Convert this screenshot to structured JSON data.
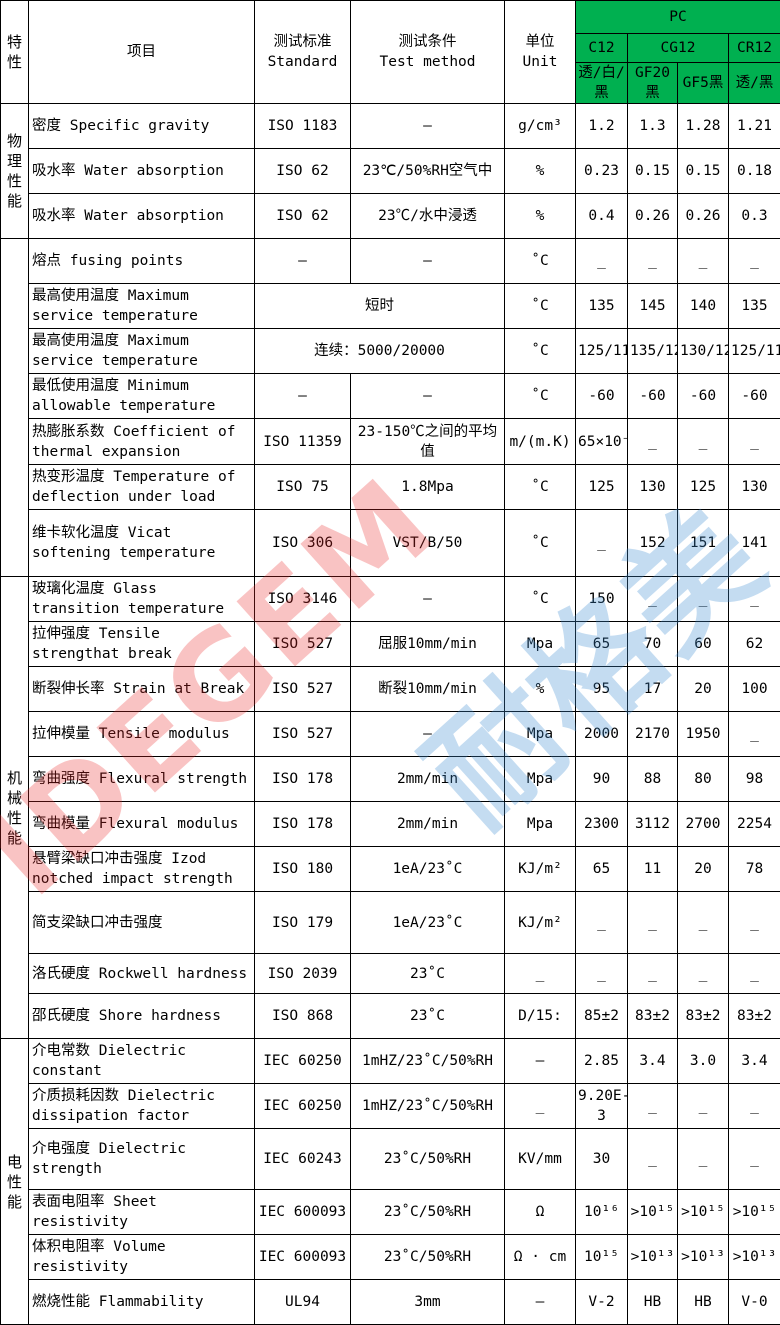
{
  "header": {
    "property": "特性",
    "item": "项目",
    "standard_cn": "测试标准",
    "standard_en": "Standard",
    "condition_cn": "测试条件",
    "condition_en": "Test method",
    "unit_cn": "单位",
    "unit_en": "Unit",
    "material": "PC",
    "grades": [
      "C12",
      "CG12",
      "CR12"
    ],
    "variants": [
      "透/白/黑",
      "GF20黑",
      "GF5黑",
      "透/黑"
    ]
  },
  "sections": [
    "物理性能",
    "",
    "机械性能",
    "电性能"
  ],
  "rows": [
    {
      "item": "密度  Specific gravity",
      "standard": "ISO 1183",
      "condition": "–",
      "unit": "g/cm³",
      "values": [
        "1.2",
        "1.3",
        "1.28",
        "1.21"
      ]
    },
    {
      "item": "吸水率  Water absorption",
      "standard": "ISO 62",
      "condition": "23℃/50%RH空气中",
      "unit": "%",
      "values": [
        "0.23",
        "0.15",
        "0.15",
        "0.18"
      ]
    },
    {
      "item": "吸水率  Water absorption",
      "standard": "ISO 62",
      "condition": "23℃/水中浸透",
      "unit": "%",
      "values": [
        "0.4",
        "0.26",
        "0.26",
        "0.3"
      ]
    },
    {
      "item": "熔点 fusing points",
      "standard": "–",
      "condition": "–",
      "unit": "˚C",
      "values": [
        "_",
        "_",
        "_",
        "_"
      ]
    },
    {
      "item": "最高使用温度 Maximum service temperature",
      "merged": "短时",
      "unit": "˚C",
      "values": [
        "135",
        "145",
        "140",
        "135"
      ]
    },
    {
      "item": "最高使用温度 Maximum service temperature",
      "merged": "连续：5000/20000",
      "unit": "˚C",
      "values": [
        "125/115",
        "135/125",
        "130/120",
        "125/115"
      ]
    },
    {
      "item": "最低使用温度 Minimum allowable temperature",
      "standard": "–",
      "condition": "–",
      "unit": "˚C",
      "values": [
        "-60",
        "-60",
        "-60",
        "-60"
      ]
    },
    {
      "item": "热膨胀系数 Coefficient of thermal expansion",
      "standard": "ISO 11359",
      "condition": "23-150℃之间的平均值",
      "unit": "m/(m.K)",
      "values": [
        "65×10⁻⁶",
        "_",
        "_",
        "_"
      ]
    },
    {
      "item": "热变形温度 Temperature of deflection under load",
      "standard": "ISO 75",
      "condition": "1.8Mpa",
      "unit": "˚C",
      "values": [
        "125",
        "130",
        "125",
        "130"
      ]
    },
    {
      "item": "维卡软化温度 Vicat softening temperature",
      "standard": "ISO 306",
      "condition": "VST/B/50",
      "unit": "˚C",
      "values": [
        "_",
        "152",
        "151",
        "141"
      ]
    },
    {
      "item": "玻璃化温度 Glass transition temperature",
      "standard": "ISO 3146",
      "condition": "–",
      "unit": "˚C",
      "values": [
        "150",
        "_",
        "_",
        "_"
      ]
    },
    {
      "item": "拉伸强度  Tensile strengthat break",
      "standard": "ISO 527",
      "condition": "屈服10mm/min",
      "unit": "Mpa",
      "values": [
        "65",
        "70",
        "60",
        "62"
      ]
    },
    {
      "item": "断裂伸长率  Strain at Break",
      "standard": "ISO 527",
      "condition": "断裂10mm/min",
      "unit": "%",
      "values": [
        "95",
        "17",
        "20",
        "100"
      ]
    },
    {
      "item": "拉伸模量  Tensile modulus",
      "standard": "ISO 527",
      "condition": "–",
      "unit": "Mpa",
      "values": [
        "2000",
        "2170",
        "1950",
        "_"
      ]
    },
    {
      "item": "弯曲强度  Flexural strength",
      "standard": "ISO 178",
      "condition": "2mm/min",
      "unit": "Mpa",
      "values": [
        "90",
        "88",
        "80",
        "98"
      ]
    },
    {
      "item": "弯曲模量  Flexural modulus",
      "standard": "ISO 178",
      "condition": "2mm/min",
      "unit": "Mpa",
      "values": [
        "2300",
        "3112",
        "2700",
        "2254"
      ]
    },
    {
      "item": "悬臂梁缺口冲击强度 Izod notched impact strength",
      "standard": "ISO 180",
      "condition": "1eA/23˚C",
      "unit": "KJ/m²",
      "values": [
        "65",
        "11",
        "20",
        "78"
      ]
    },
    {
      "item": "简支梁缺口冲击强度",
      "standard": "ISO 179",
      "condition": "1eA/23˚C",
      "unit": "KJ/m²",
      "values": [
        "_",
        "_",
        "_",
        "_"
      ]
    },
    {
      "item": "洛氏硬度  Rockwell hardness",
      "standard": "ISO 2039",
      "condition": "23˚C",
      "unit": "_",
      "values": [
        "_",
        "_",
        "_",
        "_"
      ]
    },
    {
      "item": "邵氏硬度  Shore hardness",
      "standard": "ISO 868",
      "condition": "23˚C",
      "unit": "D/15:",
      "values": [
        "85±2",
        "83±2",
        "83±2",
        "83±2"
      ]
    },
    {
      "item": "介电常数  Dielectric constant",
      "standard": "IEC 60250",
      "condition": "1mHZ/23˚C/50%RH",
      "unit": "–",
      "values": [
        "2.85",
        "3.4",
        "3.0",
        "3.4"
      ]
    },
    {
      "item": "介质损耗因数 Dielectric dissipation factor",
      "standard": "IEC 60250",
      "condition": "1mHZ/23˚C/50%RH",
      "unit": "_",
      "values": [
        "9.20E-3",
        "_",
        "_",
        "_"
      ]
    },
    {
      "item": "介电强度  Dielectric strength",
      "standard": "IEC 60243",
      "condition": "23˚C/50%RH",
      "unit": "KV/mm",
      "values": [
        "30",
        "_",
        "_",
        "_"
      ]
    },
    {
      "item": "表面电阻率 Sheet resistivity",
      "standard": "IEC 600093",
      "condition": "23˚C/50%RH",
      "unit": "Ω",
      "values": [
        "10¹⁶",
        ">10¹⁵",
        ">10¹⁵",
        ">10¹⁵"
      ]
    },
    {
      "item": "体积电阻率 Volume resistivity",
      "standard": "IEC 600093",
      "condition": "23˚C/50%RH",
      "unit": "Ω · cm",
      "values": [
        "10¹⁵",
        ">10¹³",
        ">10¹³",
        ">10¹³"
      ]
    },
    {
      "item": "燃烧性能 Flammability",
      "standard": "UL94",
      "condition": "3mm",
      "unit": "–",
      "values": [
        "V-2",
        "HB",
        "HB",
        "V-0"
      ]
    }
  ],
  "watermark": {
    "latin": "IDEGEM",
    "cn": "耐格美"
  },
  "colors": {
    "header_green": "#00b050",
    "watermark_red": "#eb2828",
    "watermark_blue": "#3c8cd2"
  }
}
